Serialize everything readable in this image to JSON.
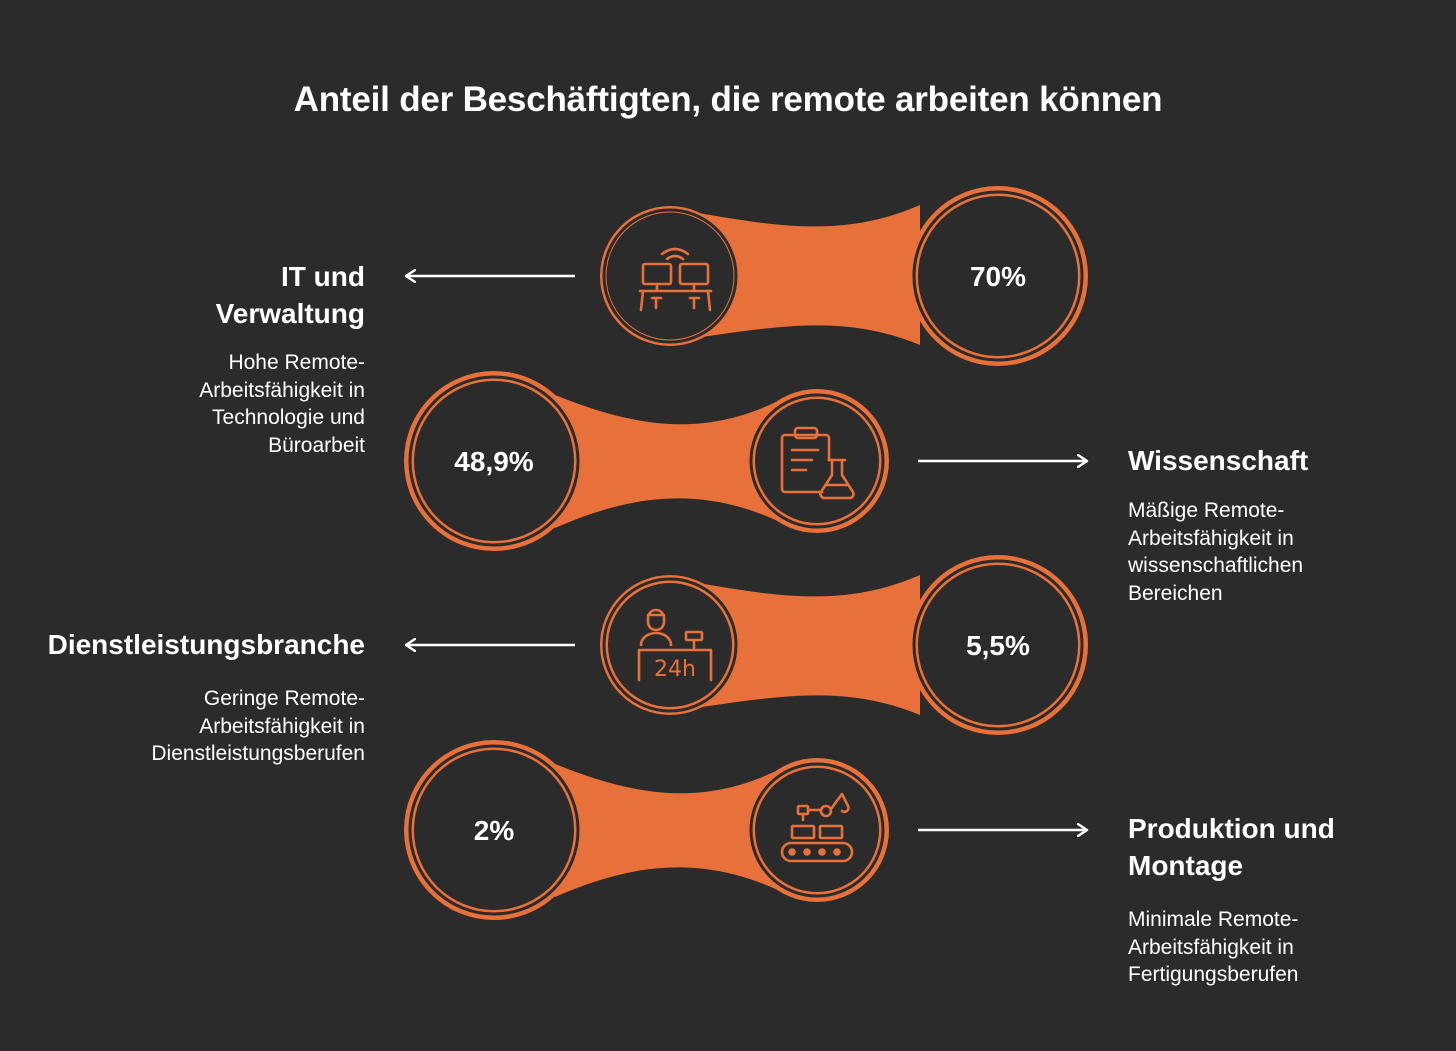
{
  "title": "Anteil der Beschäftigten, die remote arbeiten können",
  "colors": {
    "background": "#2b2b2b",
    "accent": "#e8703a",
    "text": "#ffffff"
  },
  "items": [
    {
      "heading_lines": [
        "IT und",
        "Verwaltung"
      ],
      "description_lines": [
        "Hohe Remote-",
        "Arbeitsfähigkeit in",
        "Technologie und",
        "Büroarbeit"
      ],
      "value": "70%",
      "icon": "computer-desks-wifi-icon",
      "side": "left"
    },
    {
      "heading_lines": [
        "Wissenschaft"
      ],
      "description_lines": [
        "Mäßige Remote-",
        "Arbeitsfähigkeit in",
        "wissenschaftlichen",
        "Bereichen"
      ],
      "value": "48,9%",
      "icon": "clipboard-flask-icon",
      "side": "right"
    },
    {
      "heading_lines": [
        "Dienstleistungsbranche"
      ],
      "description_lines": [
        "Geringe Remote-",
        "Arbeitsfähigkeit in",
        "Dienstleistungsberufen"
      ],
      "value": "5,5%",
      "icon": "service-desk-24h-icon",
      "side": "left"
    },
    {
      "heading_lines": [
        "Produktion und",
        "Montage"
      ],
      "description_lines": [
        "Minimale Remote-",
        "Arbeitsfähigkeit in",
        "Fertigungsberufen"
      ],
      "value": "2%",
      "icon": "robot-arm-conveyor-icon",
      "side": "right"
    }
  ]
}
